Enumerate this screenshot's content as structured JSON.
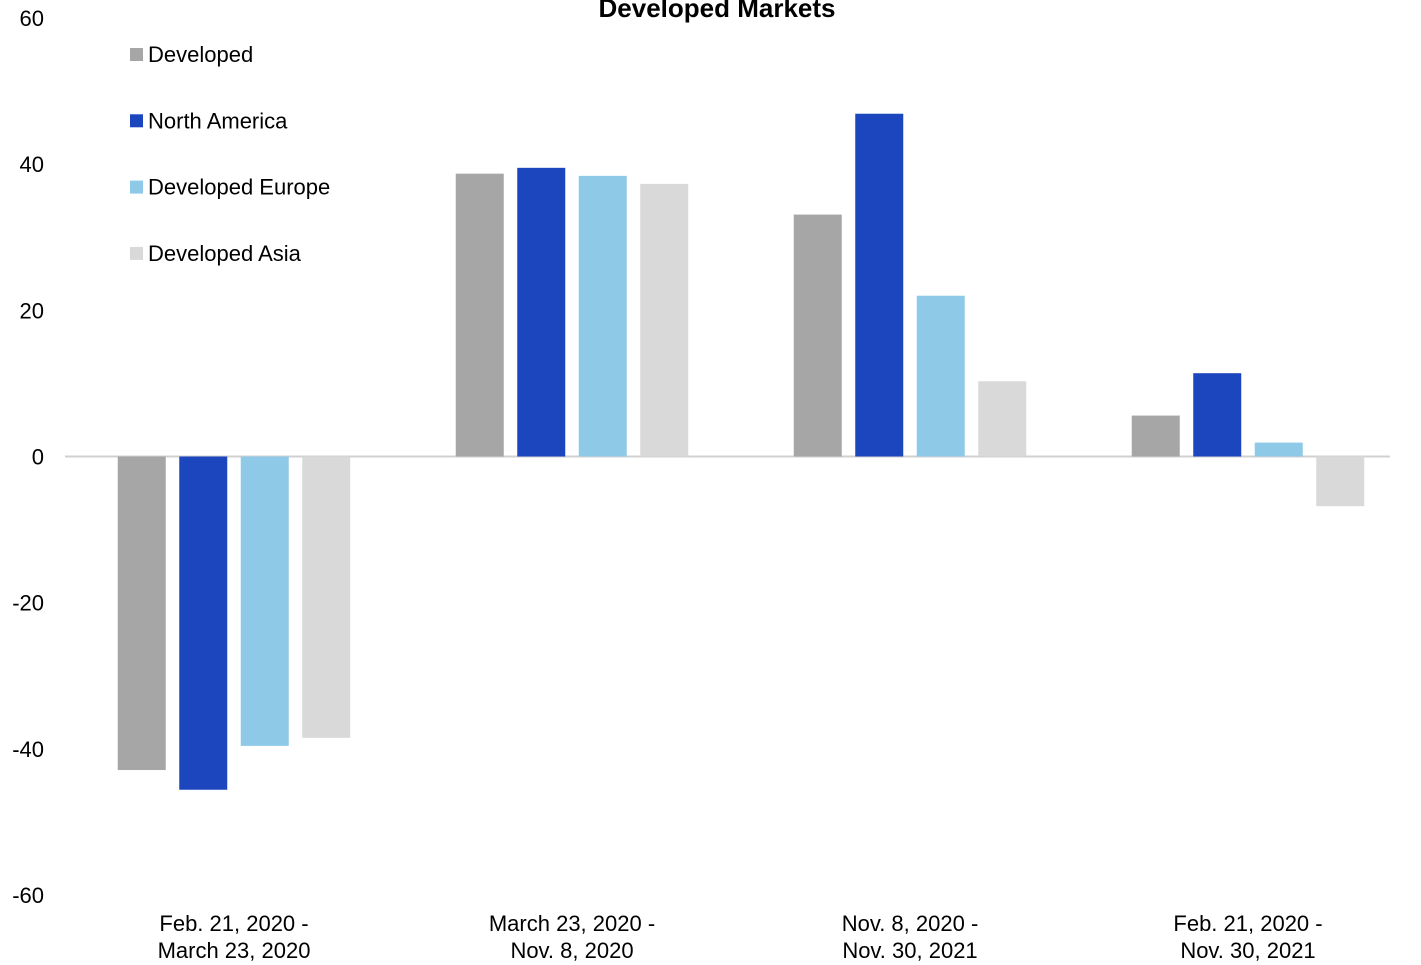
{
  "chart_data": {
    "type": "bar",
    "title": "Developed Markets",
    "categories": [
      "Feb. 21, 2020 -\nMarch 23, 2020",
      "March 23, 2020 -\nNov. 8, 2020",
      "Nov. 8, 2020 -\nNov. 30, 2021",
      "Feb. 21, 2020 -\nNov. 30, 2021"
    ],
    "series": [
      {
        "name": "Developed",
        "color": "#a6a6a6",
        "values": [
          -42.9,
          38.7,
          33.1,
          5.6
        ]
      },
      {
        "name": "North America",
        "color": "#1c46bd",
        "values": [
          -45.6,
          39.5,
          46.9,
          11.4
        ]
      },
      {
        "name": "Developed Europe",
        "color": "#8ecae8",
        "values": [
          -39.6,
          38.4,
          22.0,
          1.9
        ]
      },
      {
        "name": "Developed Asia",
        "color": "#d9d9d9",
        "values": [
          -38.5,
          37.3,
          10.3,
          -6.8
        ]
      }
    ],
    "ylim": [
      -60,
      60
    ],
    "yticks": [
      -60,
      -40,
      -20,
      0,
      20,
      40,
      60
    ],
    "grid": false,
    "legend": "top-left"
  }
}
